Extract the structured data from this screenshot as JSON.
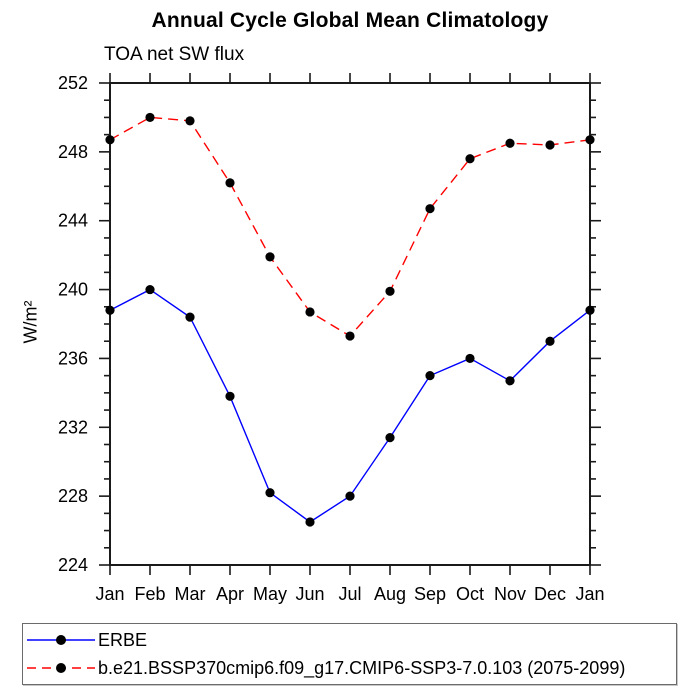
{
  "accent_colors": {
    "erbe_line": "#0000ff",
    "model_line": "#ff0000",
    "marker": "#000000",
    "axis": "#1a1a1a"
  },
  "chart_data": {
    "type": "line",
    "title": "Annual Cycle Global Mean Climatology",
    "subtitle": "TOA net SW flux",
    "xlabel": "",
    "ylabel": "W/m²",
    "categories": [
      "Jan",
      "Feb",
      "Mar",
      "Apr",
      "May",
      "Jun",
      "Jul",
      "Aug",
      "Sep",
      "Oct",
      "Nov",
      "Dec",
      "Jan"
    ],
    "ylim": [
      224,
      252
    ],
    "ytick_major": 4,
    "ytick_minor": 1,
    "grid": false,
    "legend_position": "bottom",
    "series": [
      {
        "name": "ERBE",
        "color": "#0000ff",
        "style": "solid",
        "marker": "black-dot",
        "values": [
          238.8,
          240.0,
          238.4,
          233.8,
          228.2,
          226.5,
          228.0,
          231.4,
          235.0,
          236.0,
          234.7,
          237.0,
          238.8
        ]
      },
      {
        "name": "b.e21.BSSP370cmip6.f09_g17.CMIP6-SSP3-7.0.103 (2075-2099)",
        "color": "#ff0000",
        "style": "dashed",
        "marker": "black-dot",
        "values": [
          248.7,
          250.0,
          249.8,
          246.2,
          241.9,
          238.7,
          237.3,
          239.9,
          244.7,
          247.6,
          248.5,
          248.4,
          248.7
        ]
      }
    ]
  }
}
